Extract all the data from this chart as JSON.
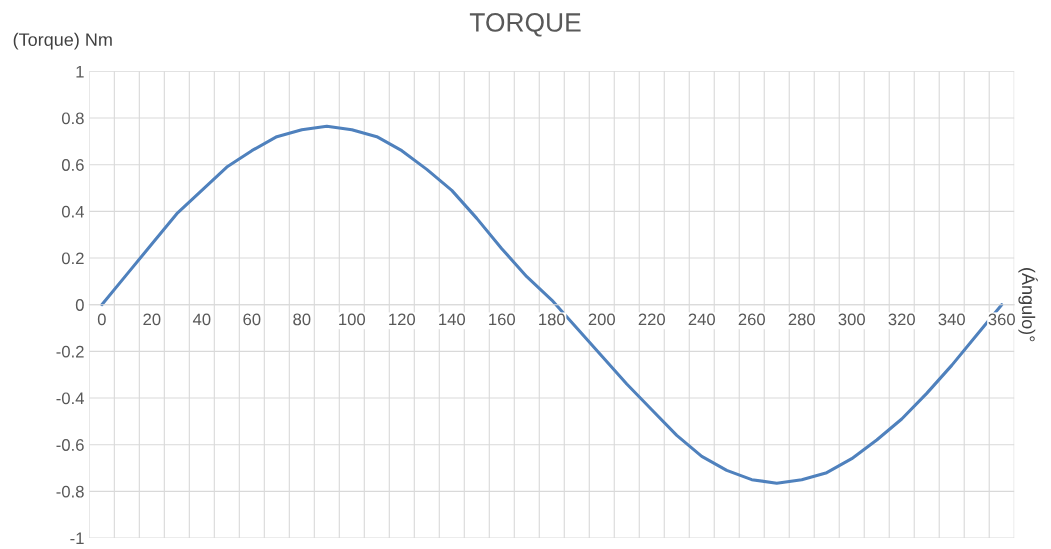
{
  "chart_data": {
    "type": "line",
    "title": "TORQUE",
    "ylabel": "(Torque) Nm",
    "annotations": [
      "(Ángulo)°"
    ],
    "categories": [
      "0",
      null,
      "20",
      null,
      "40",
      null,
      "60",
      null,
      "80",
      null,
      "100",
      null,
      "120",
      null,
      "140",
      null,
      "160",
      null,
      "180",
      null,
      "200",
      null,
      "220",
      null,
      "240",
      null,
      "260",
      null,
      "280",
      null,
      "300",
      null,
      "320",
      null,
      "340",
      null,
      "360"
    ],
    "series": [
      {
        "color": "#4f81bd",
        "values": [
          0,
          0.13,
          0.26,
          0.39,
          0.49,
          0.59,
          0.66,
          0.72,
          0.75,
          0.765,
          0.75,
          0.72,
          0.66,
          0.58,
          0.49,
          0.37,
          0.24,
          0.12,
          0.02,
          -0.1,
          -0.22,
          -0.34,
          -0.45,
          -0.56,
          -0.65,
          -0.71,
          -0.75,
          -0.765,
          -0.75,
          -0.72,
          -0.66,
          -0.58,
          -0.49,
          -0.38,
          -0.26,
          -0.13,
          0
        ]
      }
    ],
    "ylim": [
      -1,
      1
    ],
    "yticks": [
      -1,
      -0.8,
      -0.6,
      -0.4,
      -0.2,
      0,
      0.2,
      0.4,
      0.6,
      0.8,
      1
    ],
    "grid": true,
    "legend": false,
    "marker": "none",
    "line_style": "solid"
  }
}
